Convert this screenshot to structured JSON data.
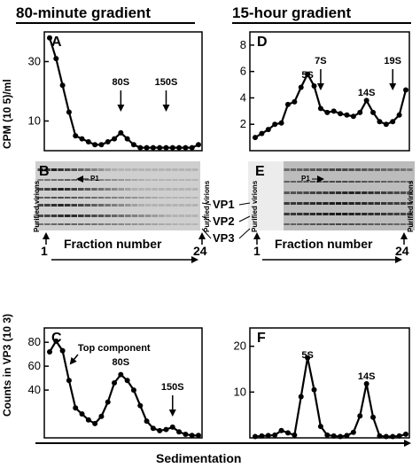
{
  "figure": {
    "left_title": "80-minute gradient",
    "right_title": "15-hour gradient",
    "ylabel_top": "CPM (10 5)/ml",
    "ylabel_bottom": "Counts in VP3 (10 3)",
    "xlabel": "Sedimentation",
    "gel_B": {
      "label": "B",
      "left_lane": "Purified virions",
      "right_lane": "Purified virions",
      "p1": "P1",
      "fraction_label": "Fraction number",
      "start": "1",
      "end": "24"
    },
    "gel_E": {
      "label": "E",
      "left_lane": "Purified virions",
      "right_lane": "Purified virions",
      "p1": "P1",
      "fraction_label": "Fraction number",
      "start": "1",
      "end": "24"
    },
    "vp_labels": [
      "VP1",
      "VP2",
      "VP3"
    ]
  },
  "chart_data": [
    {
      "panel": "A",
      "type": "line",
      "x": [
        1,
        2,
        3,
        4,
        5,
        6,
        7,
        8,
        9,
        10,
        11,
        12,
        13,
        14,
        15,
        16,
        17,
        18,
        19,
        20,
        21,
        22,
        23,
        24
      ],
      "y": [
        38,
        31,
        22,
        13,
        5,
        4,
        3,
        2,
        2,
        3,
        4,
        6,
        4,
        2,
        1,
        1,
        1,
        1,
        1,
        1,
        1,
        1,
        1,
        2
      ],
      "ylim": [
        0,
        40
      ],
      "yticks": [
        10,
        30
      ],
      "annotations": [
        {
          "text": "80S",
          "x": 12
        },
        {
          "text": "150S",
          "x": 19
        }
      ]
    },
    {
      "panel": "D",
      "type": "line",
      "x": [
        1,
        2,
        3,
        4,
        5,
        6,
        7,
        8,
        9,
        10,
        11,
        12,
        13,
        14,
        15,
        16,
        17,
        18,
        19,
        20,
        21,
        22,
        23,
        24
      ],
      "y": [
        1.0,
        1.3,
        1.6,
        2.0,
        2.1,
        3.5,
        3.7,
        4.8,
        5.8,
        4.9,
        3.2,
        2.9,
        3.0,
        2.8,
        2.7,
        2.6,
        2.9,
        3.8,
        2.9,
        2.2,
        2.0,
        2.2,
        2.7,
        4.6
      ],
      "ylim": [
        0,
        9
      ],
      "yticks": [
        2,
        4,
        6,
        8
      ],
      "annotations": [
        {
          "text": "5S",
          "x": 9
        },
        {
          "text": "7S",
          "x": 11
        },
        {
          "text": "14S",
          "x": 18
        },
        {
          "text": "19S",
          "x": 22
        }
      ]
    },
    {
      "panel": "C",
      "type": "line",
      "x": [
        1,
        2,
        3,
        4,
        5,
        6,
        7,
        8,
        9,
        10,
        11,
        12,
        13,
        14,
        15,
        16,
        17,
        18,
        19,
        20,
        21,
        22,
        23,
        24
      ],
      "y": [
        72,
        81,
        73,
        48,
        25,
        20,
        15,
        12,
        18,
        30,
        46,
        53,
        48,
        40,
        27,
        14,
        8,
        6,
        7,
        9,
        5,
        3,
        2,
        2
      ],
      "ylim": [
        0,
        92
      ],
      "yticks": [
        40,
        60,
        80
      ],
      "annotations": [
        {
          "text": "Top component",
          "x": 4
        },
        {
          "text": "80S",
          "x": 12
        },
        {
          "text": "150S",
          "x": 20
        }
      ]
    },
    {
      "panel": "F",
      "type": "line",
      "x": [
        1,
        2,
        3,
        4,
        5,
        6,
        7,
        8,
        9,
        10,
        11,
        12,
        13,
        14,
        15,
        16,
        17,
        18,
        19,
        20,
        21,
        22,
        23,
        24
      ],
      "y": [
        0.3,
        0.4,
        0.5,
        0.6,
        1.6,
        1.1,
        0.6,
        9.0,
        17.5,
        10.5,
        2.5,
        0.6,
        0.4,
        0.3,
        0.5,
        1.2,
        4.8,
        11.8,
        4.5,
        0.4,
        0.3,
        0.3,
        0.4,
        0.8
      ],
      "ylim": [
        0,
        24
      ],
      "yticks": [
        10,
        20
      ],
      "annotations": [
        {
          "text": "5S",
          "x": 9
        },
        {
          "text": "14S",
          "x": 18
        }
      ]
    }
  ]
}
